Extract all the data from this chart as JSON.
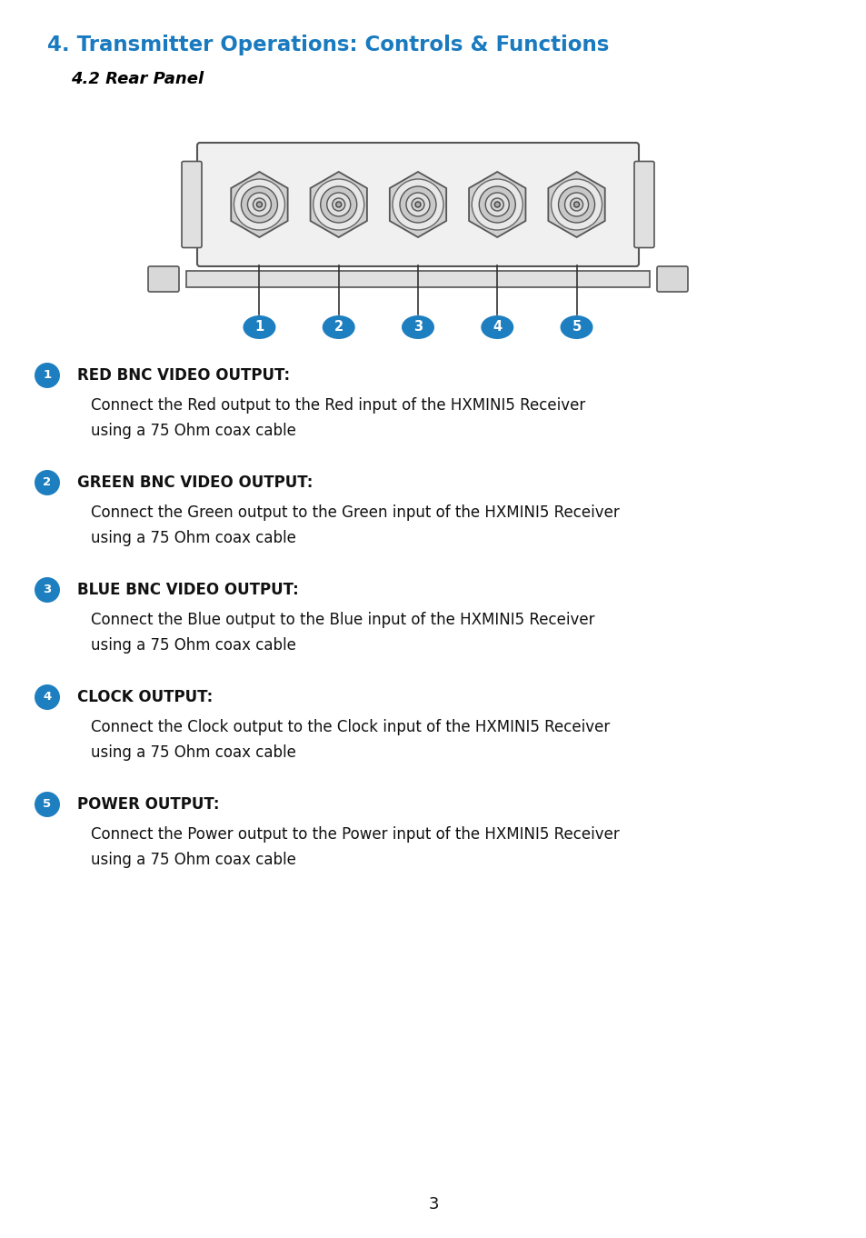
{
  "title": "4. Transmitter Operations: Controls & Functions",
  "subtitle": "4.2 Rear Panel",
  "title_color": "#1a7abf",
  "subtitle_color": "#000000",
  "bullet_color": "#1e7fc0",
  "items": [
    {
      "number": "1",
      "heading": "RED BNC VIDEO OUTPUT:",
      "body": "Connect the Red output to the Red input of the HXMINI5 Receiver\nusing a 75 Ohm coax cable"
    },
    {
      "number": "2",
      "heading": "GREEN BNC VIDEO OUTPUT:",
      "body": "Connect the Green output to the Green input of the HXMINI5 Receiver\nusing a 75 Ohm coax cable"
    },
    {
      "number": "3",
      "heading": "BLUE BNC VIDEO OUTPUT:",
      "body": "Connect the Blue output to the Blue input of the HXMINI5 Receiver\nusing a 75 Ohm coax cable"
    },
    {
      "number": "4",
      "heading": "CLOCK OUTPUT:",
      "body": "Connect the Clock output to the Clock input of the HXMINI5 Receiver\nusing a 75 Ohm coax cable"
    },
    {
      "number": "5",
      "heading": "POWER OUTPUT:",
      "body": "Connect the Power output to the Power input of the HXMINI5 Receiver\nusing a 75 Ohm coax cable"
    }
  ],
  "page_number": "3",
  "background_color": "#ffffff"
}
